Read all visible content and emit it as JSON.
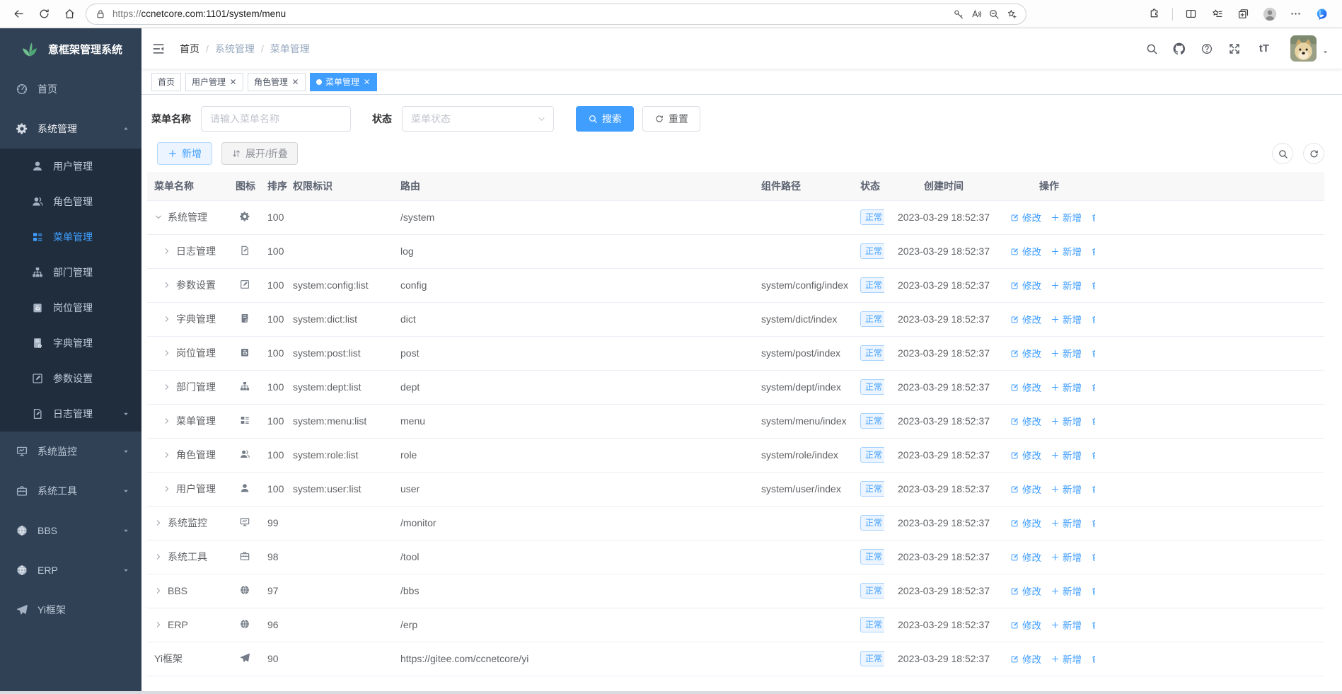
{
  "browser": {
    "url_scheme": "https://",
    "url_host": "ccnetcore.com",
    "url_path": ":1101/system/menu",
    "url_full": "https://ccnetcore.com:1101/system/menu"
  },
  "sidebar": {
    "logo_title": "意框架管理系统",
    "menu": [
      {
        "icon": "dashboard",
        "label": "首页"
      },
      {
        "icon": "gear",
        "label": "系统管理",
        "open": true,
        "children": [
          {
            "icon": "user",
            "label": "用户管理"
          },
          {
            "icon": "users",
            "label": "角色管理"
          },
          {
            "icon": "menulist",
            "label": "菜单管理",
            "active": true
          },
          {
            "icon": "org",
            "label": "部门管理"
          },
          {
            "icon": "post",
            "label": "岗位管理"
          },
          {
            "icon": "dict",
            "label": "字典管理"
          },
          {
            "icon": "editsq",
            "label": "参数设置"
          },
          {
            "icon": "log",
            "label": "日志管理",
            "caret": true
          }
        ]
      },
      {
        "icon": "monitor",
        "label": "系统监控",
        "caret": true
      },
      {
        "icon": "toolbox",
        "label": "系统工具",
        "caret": true
      },
      {
        "icon": "globe",
        "label": "BBS",
        "caret": true
      },
      {
        "icon": "globe",
        "label": "ERP",
        "caret": true
      },
      {
        "icon": "plane",
        "label": "Yi框架"
      }
    ]
  },
  "navbar": {
    "breadcrumb": [
      "首页",
      "系统管理",
      "菜单管理"
    ]
  },
  "tabs": [
    {
      "label": "首页",
      "closable": false,
      "active": false
    },
    {
      "label": "用户管理",
      "closable": true,
      "active": false
    },
    {
      "label": "角色管理",
      "closable": true,
      "active": false
    },
    {
      "label": "菜单管理",
      "closable": true,
      "active": true
    }
  ],
  "filters": {
    "name_label": "菜单名称",
    "name_placeholder": "请输入菜单名称",
    "status_label": "状态",
    "status_placeholder": "菜单状态",
    "search_button": "搜索",
    "reset_button": "重置"
  },
  "toolbar": {
    "add_button": "新增",
    "expand_button": "展开/折叠"
  },
  "table": {
    "columns": [
      "菜单名称",
      "图标",
      "排序",
      "权限标识",
      "路由",
      "组件路径",
      "状态",
      "创建时间",
      "操作"
    ],
    "actions": {
      "edit": "修改",
      "add": "新增",
      "delete": "删除"
    },
    "rows": [
      {
        "level": 0,
        "expand": "open",
        "icon": "gear",
        "name": "系统管理",
        "order": "100",
        "perms": "",
        "path": "/system",
        "component": "",
        "status": "正常",
        "time": "2023-03-29 18:52:37"
      },
      {
        "level": 1,
        "expand": "closed",
        "icon": "log",
        "name": "日志管理",
        "order": "100",
        "perms": "",
        "path": "log",
        "component": "",
        "status": "正常",
        "time": "2023-03-29 18:52:37"
      },
      {
        "level": 1,
        "expand": "closed",
        "icon": "editsq",
        "name": "参数设置",
        "order": "100",
        "perms": "system:config:list",
        "path": "config",
        "component": "system/config/index",
        "status": "正常",
        "time": "2023-03-29 18:52:37"
      },
      {
        "level": 1,
        "expand": "closed",
        "icon": "dict",
        "name": "字典管理",
        "order": "100",
        "perms": "system:dict:list",
        "path": "dict",
        "component": "system/dict/index",
        "status": "正常",
        "time": "2023-03-29 18:52:37"
      },
      {
        "level": 1,
        "expand": "closed",
        "icon": "post",
        "name": "岗位管理",
        "order": "100",
        "perms": "system:post:list",
        "path": "post",
        "component": "system/post/index",
        "status": "正常",
        "time": "2023-03-29 18:52:37"
      },
      {
        "level": 1,
        "expand": "closed",
        "icon": "org",
        "name": "部门管理",
        "order": "100",
        "perms": "system:dept:list",
        "path": "dept",
        "component": "system/dept/index",
        "status": "正常",
        "time": "2023-03-29 18:52:37"
      },
      {
        "level": 1,
        "expand": "closed",
        "icon": "menulist",
        "name": "菜单管理",
        "order": "100",
        "perms": "system:menu:list",
        "path": "menu",
        "component": "system/menu/index",
        "status": "正常",
        "time": "2023-03-29 18:52:37"
      },
      {
        "level": 1,
        "expand": "closed",
        "icon": "users",
        "name": "角色管理",
        "order": "100",
        "perms": "system:role:list",
        "path": "role",
        "component": "system/role/index",
        "status": "正常",
        "time": "2023-03-29 18:52:37"
      },
      {
        "level": 1,
        "expand": "closed",
        "icon": "user",
        "name": "用户管理",
        "order": "100",
        "perms": "system:user:list",
        "path": "user",
        "component": "system/user/index",
        "status": "正常",
        "time": "2023-03-29 18:52:37"
      },
      {
        "level": 0,
        "expand": "closed",
        "icon": "monitor",
        "name": "系统监控",
        "order": "99",
        "perms": "",
        "path": "/monitor",
        "component": "",
        "status": "正常",
        "time": "2023-03-29 18:52:37"
      },
      {
        "level": 0,
        "expand": "closed",
        "icon": "toolbox",
        "name": "系统工具",
        "order": "98",
        "perms": "",
        "path": "/tool",
        "component": "",
        "status": "正常",
        "time": "2023-03-29 18:52:37"
      },
      {
        "level": 0,
        "expand": "closed",
        "icon": "globe",
        "name": "BBS",
        "order": "97",
        "perms": "",
        "path": "/bbs",
        "component": "",
        "status": "正常",
        "time": "2023-03-29 18:52:37"
      },
      {
        "level": 0,
        "expand": "closed",
        "icon": "globe",
        "name": "ERP",
        "order": "96",
        "perms": "",
        "path": "/erp",
        "component": "",
        "status": "正常",
        "time": "2023-03-29 18:52:37"
      },
      {
        "level": 0,
        "expand": "none",
        "icon": "plane",
        "name": "Yi框架",
        "order": "90",
        "perms": "",
        "path": "https://gitee.com/ccnetcore/yi",
        "component": "",
        "status": "正常",
        "time": "2023-03-29 18:52:37"
      }
    ]
  },
  "colors": {
    "primary": "#409eff",
    "sidebar_bg": "#304156",
    "submenu_bg": "#1f2d3d",
    "status_tag_bg": "#ecf5ff",
    "status_tag_border": "#a8d3ff",
    "active_tab_bg": "#409eff"
  }
}
